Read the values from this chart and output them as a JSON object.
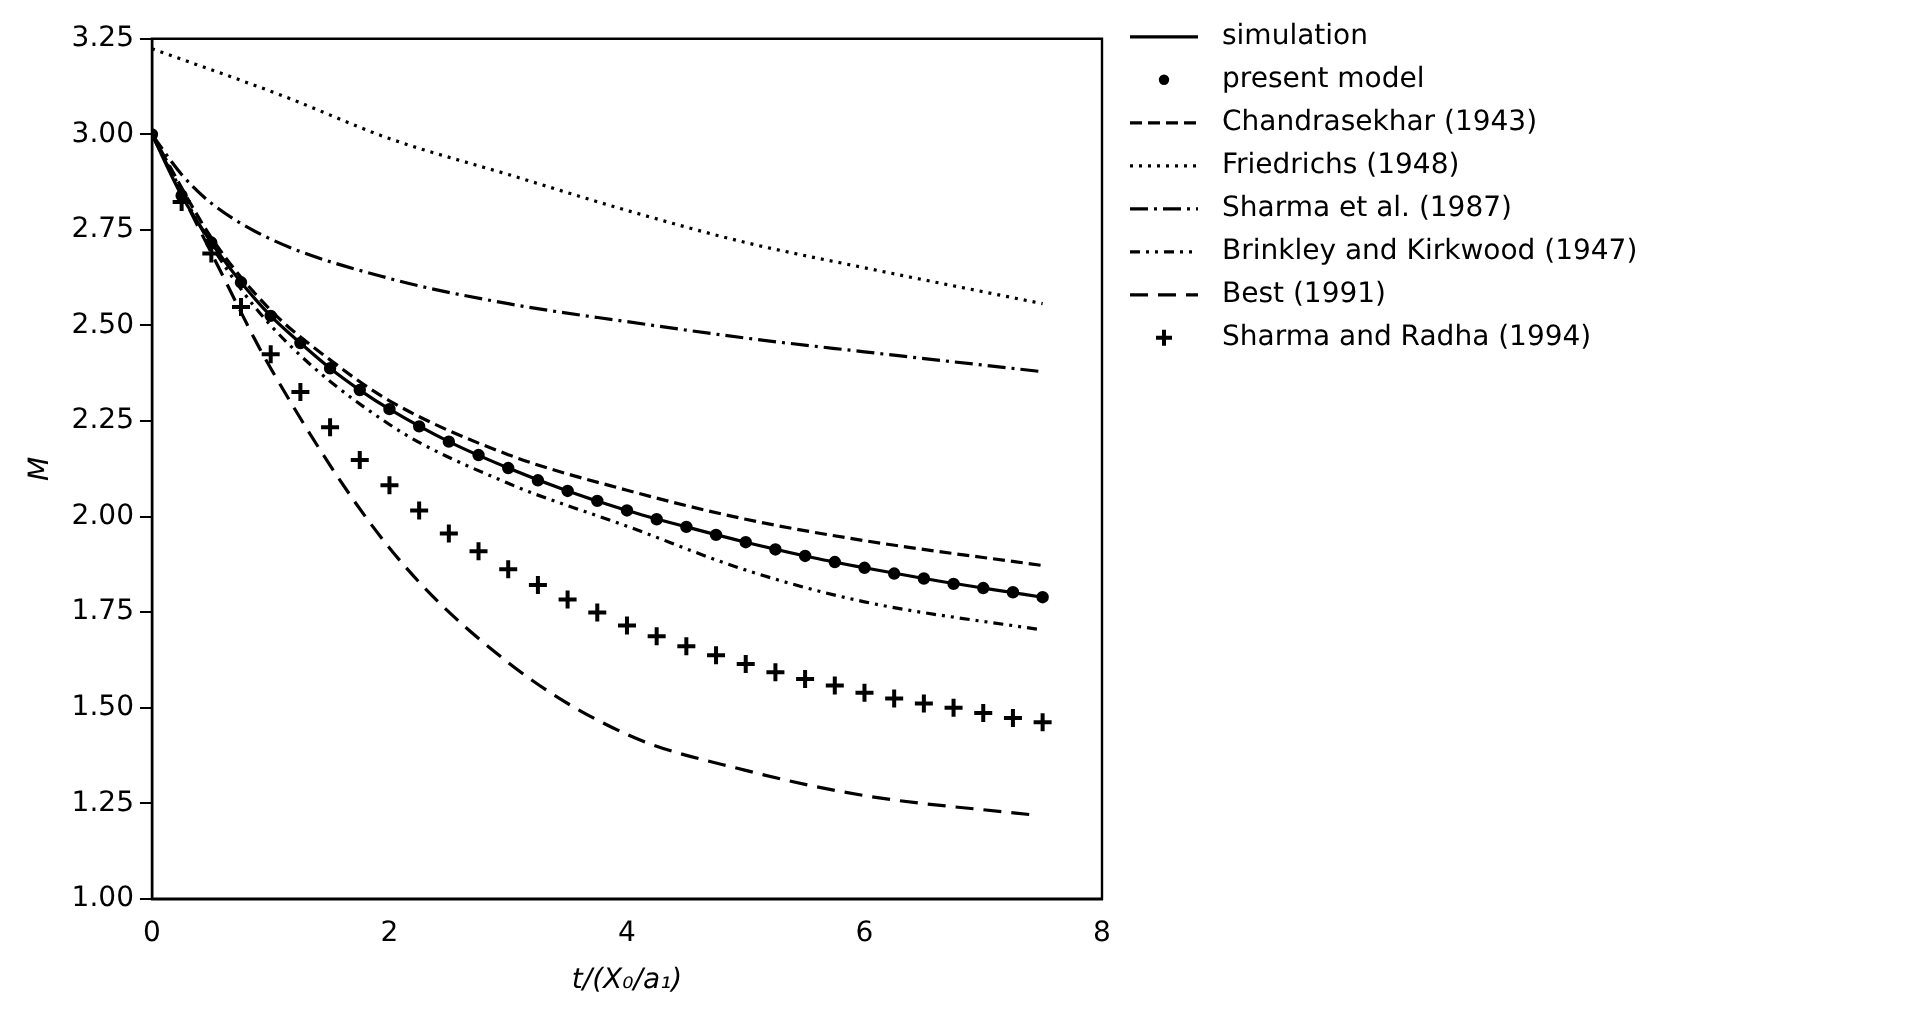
{
  "chart_data": {
    "type": "line",
    "xlabel": "t/(X₀/a₁)",
    "ylabel": "M",
    "xlim": [
      0,
      8
    ],
    "xticks": [
      0,
      2,
      4,
      6,
      8
    ],
    "ylim": [
      1,
      3.25
    ],
    "yticks": [
      {
        "value": 1,
        "label": "1.00"
      },
      {
        "value": 1.25,
        "label": "1.25"
      },
      {
        "value": 1.5,
        "label": "1.50"
      },
      {
        "value": 1.75,
        "label": "1.75"
      },
      {
        "value": 2,
        "label": "2.00"
      },
      {
        "value": 2.25,
        "label": "2.25"
      },
      {
        "value": 2.5,
        "label": "2.50"
      },
      {
        "value": 2.75,
        "label": "2.75"
      },
      {
        "value": 3,
        "label": "3.00"
      },
      {
        "value": 3.25,
        "label": "3.25"
      }
    ],
    "grid": false,
    "legend": "right",
    "series": [
      {
        "name": "simulation",
        "type": "line",
        "line_style": "solid",
        "marker": "none",
        "color": "#000000",
        "x": [
          0,
          0.25,
          0.5,
          0.75,
          1,
          1.25,
          1.5,
          1.75,
          2,
          2.5,
          3,
          3.5,
          4,
          4.5,
          5,
          5.5,
          6,
          6.5,
          7,
          7.5
        ],
        "values": [
          3.0,
          2.84,
          2.717,
          2.613,
          2.525,
          2.454,
          2.388,
          2.331,
          2.281,
          2.196,
          2.127,
          2.067,
          2.016,
          1.973,
          1.933,
          1.897,
          1.866,
          1.838,
          1.813,
          1.789
        ]
      },
      {
        "name": "present model",
        "type": "scatter",
        "marker": "circle",
        "color": "#000000",
        "x": [
          0,
          0.25,
          0.5,
          0.75,
          1,
          1.25,
          1.5,
          1.75,
          2,
          2.25,
          2.5,
          2.75,
          3,
          3.25,
          3.5,
          3.75,
          4,
          4.25,
          4.5,
          4.75,
          5,
          5.25,
          5.5,
          5.75,
          6,
          6.25,
          6.5,
          6.75,
          7,
          7.25,
          7.5
        ],
        "values": [
          3.0,
          2.84,
          2.717,
          2.613,
          2.525,
          2.454,
          2.388,
          2.331,
          2.281,
          2.236,
          2.196,
          2.161,
          2.127,
          2.095,
          2.067,
          2.041,
          2.016,
          1.993,
          1.973,
          1.952,
          1.933,
          1.914,
          1.897,
          1.881,
          1.866,
          1.851,
          1.838,
          1.824,
          1.813,
          1.802,
          1.789
        ]
      },
      {
        "name": "Chandrasekhar (1943)",
        "type": "line",
        "line_style": "dashed",
        "marker": "none",
        "color": "#000000",
        "x": [
          0,
          0.5,
          1,
          1.5,
          2,
          3,
          4,
          5,
          6,
          7.5
        ],
        "values": [
          3.0,
          2.73,
          2.54,
          2.41,
          2.303,
          2.162,
          2.069,
          1.993,
          1.937,
          1.872
        ]
      },
      {
        "name": "Friedrichs (1948)",
        "type": "line",
        "line_style": "dotted",
        "marker": "none",
        "color": "#000000",
        "x": [
          0,
          1.1,
          2,
          3,
          4,
          5,
          6,
          7.5
        ],
        "values": [
          3.224,
          3.101,
          2.989,
          2.895,
          2.801,
          2.717,
          2.651,
          2.557
        ]
      },
      {
        "name": "Sharma et al. (1987)",
        "type": "line",
        "line_style": "dashdot",
        "marker": "none",
        "color": "#000000",
        "x": [
          0,
          0.25,
          0.5,
          1,
          2,
          3,
          4,
          5,
          6,
          7.5
        ],
        "values": [
          3.0,
          2.895,
          2.82,
          2.726,
          2.623,
          2.557,
          2.51,
          2.467,
          2.431,
          2.379
        ]
      },
      {
        "name": "Brinkley and Kirkwood (1947)",
        "type": "line",
        "line_style": "dashdotdot",
        "marker": "none",
        "color": "#000000",
        "x": [
          0,
          0.5,
          1,
          2,
          3,
          4,
          5,
          6,
          7.5
        ],
        "values": [
          3.0,
          2.71,
          2.5,
          2.241,
          2.087,
          1.975,
          1.86,
          1.777,
          1.703
        ]
      },
      {
        "name": "Best (1991)",
        "type": "line",
        "line_style": "longdashed",
        "marker": "none",
        "color": "#000000",
        "x": [
          0,
          0.5,
          1,
          2,
          3,
          4,
          5,
          6,
          7.4
        ],
        "values": [
          3.0,
          2.69,
          2.388,
          1.918,
          1.618,
          1.43,
          1.336,
          1.27,
          1.22
        ]
      },
      {
        "name": "Sharma and Radha (1994)",
        "type": "scatter",
        "marker": "cross",
        "color": "#000000",
        "x": [
          0.25,
          0.5,
          0.75,
          1,
          1.25,
          1.5,
          1.75,
          2,
          2.25,
          2.5,
          2.75,
          3,
          3.25,
          3.5,
          3.75,
          4,
          4.25,
          4.5,
          4.75,
          5,
          5.25,
          5.5,
          5.75,
          6,
          6.25,
          6.5,
          6.75,
          7,
          7.25,
          7.5
        ],
        "values": [
          2.823,
          2.688,
          2.548,
          2.425,
          2.326,
          2.234,
          2.148,
          2.082,
          2.016,
          1.956,
          1.909,
          1.862,
          1.821,
          1.783,
          1.749,
          1.715,
          1.687,
          1.661,
          1.637,
          1.614,
          1.593,
          1.575,
          1.558,
          1.539,
          1.524,
          1.511,
          1.5,
          1.486,
          1.473,
          1.462
        ]
      }
    ]
  }
}
